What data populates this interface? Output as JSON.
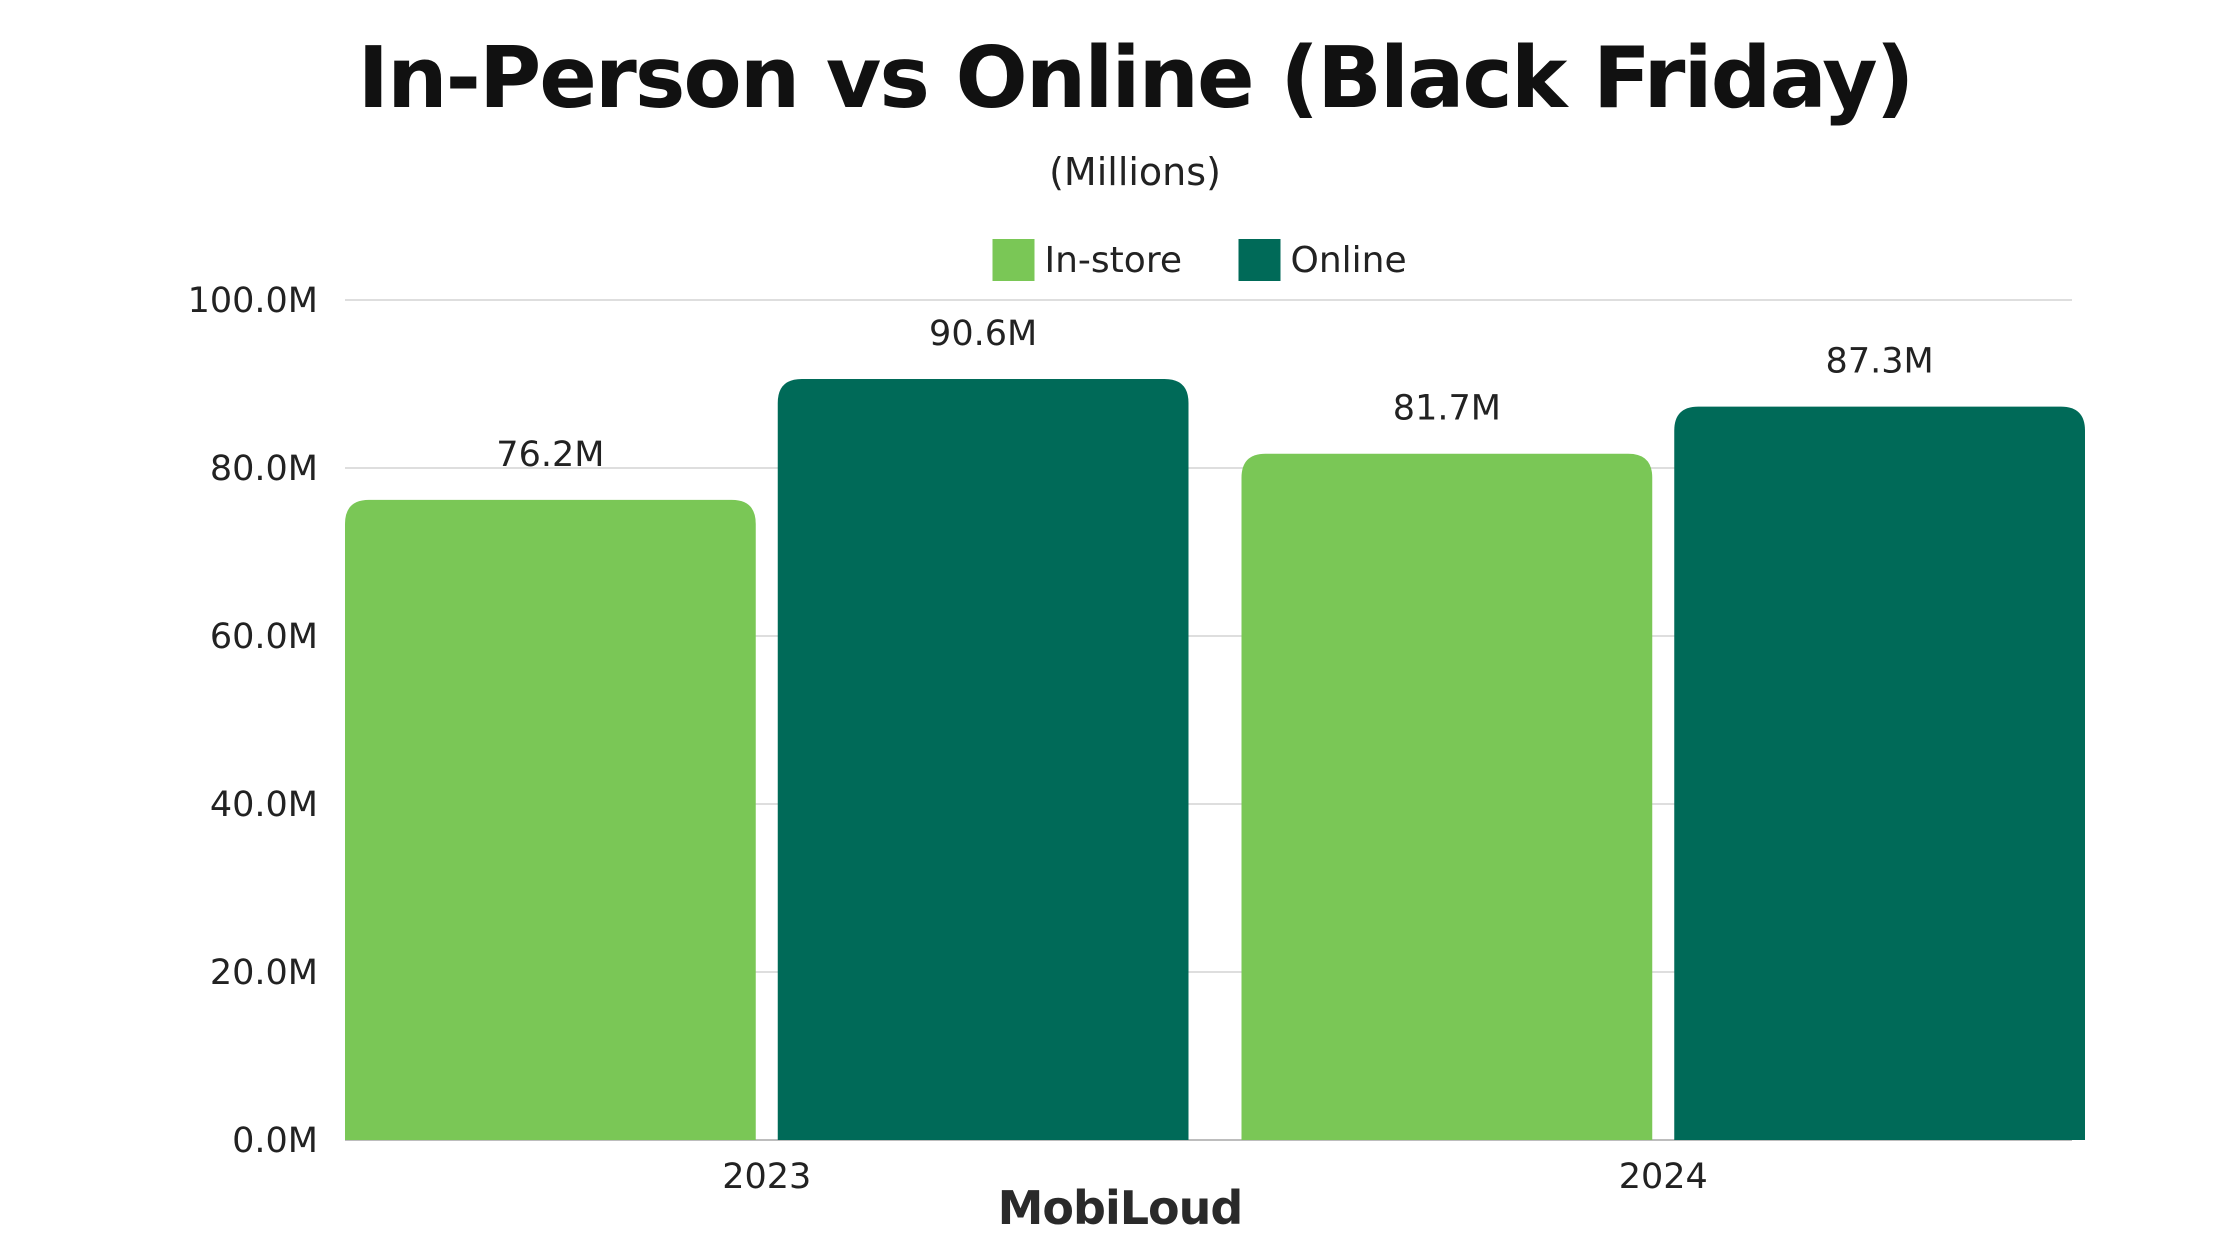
{
  "chart_data": {
    "type": "bar",
    "title": "In-Person vs Online (Black Friday)",
    "subtitle": "(Millions)",
    "categories": [
      "2023",
      "2024"
    ],
    "series": [
      {
        "name": "In-store",
        "color": "#7ac756",
        "values": [
          76.2,
          81.7
        ],
        "labels": [
          "76.2M",
          "81.7M"
        ]
      },
      {
        "name": "Online",
        "color": "#006a58",
        "values": [
          90.6,
          87.3
        ],
        "labels": [
          "90.6M",
          "87.3M"
        ]
      }
    ],
    "y_ticks": [
      "0.0M",
      "20.0M",
      "40.0M",
      "60.0M",
      "80.0M",
      "100.0M"
    ],
    "ylim": [
      0,
      100
    ],
    "grid": true,
    "legend_position": "top-center"
  },
  "brand": "MobiLoud"
}
